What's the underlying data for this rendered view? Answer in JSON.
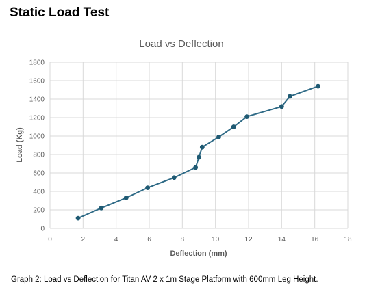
{
  "section": {
    "title": "Static Load Test"
  },
  "caption": "Graph 2: Load vs Deflection for Titan AV 2 x 1m Stage Platform with 600mm Leg Height.",
  "chart_data": {
    "type": "line",
    "title": "Load vs Deflection",
    "xlabel": "Deflection (mm)",
    "ylabel": "Load (Kg)",
    "xlim": [
      0,
      18
    ],
    "ylim": [
      0,
      1800
    ],
    "xticks": [
      0,
      2,
      4,
      6,
      8,
      10,
      12,
      14,
      16,
      18
    ],
    "yticks": [
      0,
      200,
      400,
      600,
      800,
      1000,
      1200,
      1400,
      1600,
      1800
    ],
    "grid": true,
    "legend": "none",
    "line_color": "#2e6a86",
    "marker_color": "#1f5a73",
    "series": [
      {
        "x": [
          1.7,
          3.1,
          4.6,
          5.9,
          7.5,
          8.8,
          9.0,
          9.2,
          10.2,
          11.1,
          11.9,
          14.0,
          14.5,
          16.2
        ],
        "y": [
          110,
          220,
          330,
          440,
          550,
          660,
          770,
          880,
          990,
          1100,
          1210,
          1320,
          1430,
          1540
        ]
      }
    ]
  }
}
